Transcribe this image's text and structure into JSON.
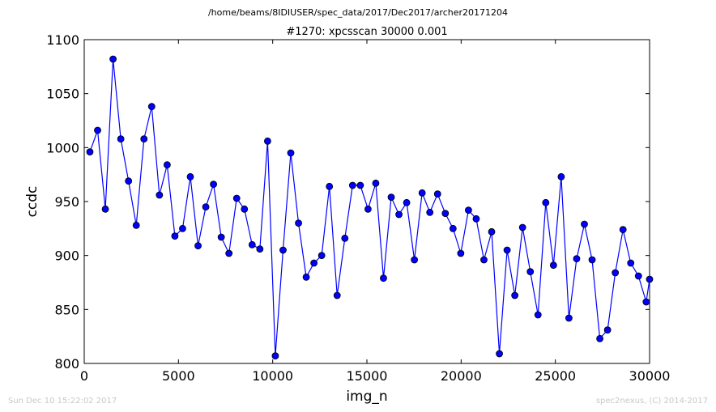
{
  "header": {
    "path": "/home/beams/8IDIUSER/spec_data/2017/Dec2017/archer20171204",
    "scan_title": "#1270: xpcsscan 30000 0.001"
  },
  "footer": {
    "timestamp": "Sun Dec 10 15:22:02 2017",
    "credit": "spec2nexus, (C) 2014-2017"
  },
  "chart_data": {
    "type": "line",
    "title": "#1270: xpcsscan 30000 0.001",
    "xlabel": "img_n",
    "ylabel": "ccdc",
    "xlim": [
      0,
      30000
    ],
    "ylim": [
      800,
      1100
    ],
    "xticks": [
      0,
      5000,
      10000,
      15000,
      20000,
      25000,
      30000
    ],
    "yticks": [
      800,
      850,
      900,
      950,
      1000,
      1050,
      1100
    ],
    "grid": false,
    "line_color": "#0000ff",
    "marker": "circle",
    "x": [
      300,
      710,
      1120,
      1530,
      1940,
      2350,
      2760,
      3170,
      3580,
      3990,
      4400,
      4810,
      5220,
      5630,
      6040,
      6450,
      6860,
      7270,
      7680,
      8090,
      8500,
      8910,
      9320,
      9730,
      10140,
      10550,
      10960,
      11370,
      11780,
      12190,
      12600,
      13010,
      13420,
      13830,
      14240,
      14650,
      15060,
      15470,
      15880,
      16290,
      16700,
      17110,
      17520,
      17930,
      18340,
      18750,
      19160,
      19570,
      19980,
      20390,
      20800,
      21210,
      21620,
      22030,
      22440,
      22850,
      23260,
      23670,
      24080,
      24490,
      24900,
      25310,
      25720,
      26130,
      26540,
      26950,
      27360,
      27770,
      28180,
      28590,
      29000,
      29410,
      29820,
      30000
    ],
    "y": [
      996,
      1016,
      943,
      1082,
      1008,
      969,
      928,
      1008,
      1038,
      956,
      984,
      918,
      925,
      973,
      909,
      945,
      966,
      917,
      902,
      953,
      943,
      910,
      906,
      1006,
      807,
      905,
      995,
      930,
      880,
      893,
      900,
      964,
      863,
      916,
      965,
      965,
      943,
      967,
      879,
      954,
      938,
      949,
      896,
      958,
      940,
      957,
      939,
      925,
      902,
      942,
      934,
      896,
      922,
      809,
      905,
      863,
      926,
      885,
      845,
      949,
      891,
      973,
      842,
      897,
      929,
      896,
      823,
      831,
      884,
      924,
      893,
      881,
      857,
      878
    ]
  }
}
